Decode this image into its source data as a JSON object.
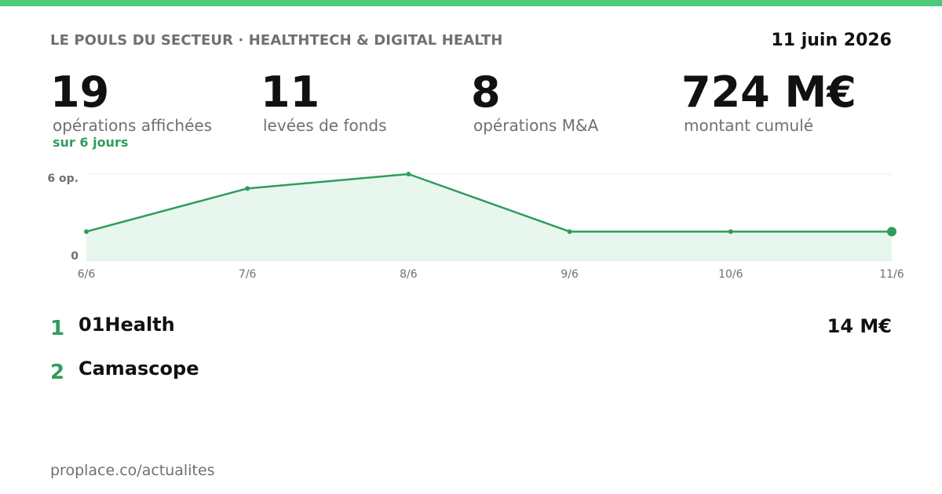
{
  "header": {
    "kicker": "LE POULS DU SECTEUR · HEALTHTECH & DIGITAL HEALTH",
    "date": "11 juin 2026"
  },
  "stats": [
    {
      "value": "19",
      "label": "opérations affichées",
      "sub": "sur 6 jours"
    },
    {
      "value": "11",
      "label": "levées de fonds"
    },
    {
      "value": "8",
      "label": "opérations M&A"
    },
    {
      "value": "724 M€",
      "label": "montant cumulé"
    }
  ],
  "chart_data": {
    "type": "area",
    "categories": [
      "6/6",
      "7/6",
      "8/6",
      "9/6",
      "10/6",
      "11/6"
    ],
    "values": [
      2,
      5,
      6,
      2,
      2,
      2
    ],
    "ylim": [
      0,
      6
    ],
    "y_tick_labels": [
      "0",
      "6 op."
    ],
    "grid": false,
    "colors": {
      "line": "#2e9d5c",
      "fill": "#e8f7ee",
      "axis_text": "#707070"
    }
  },
  "ranking": [
    {
      "rank": "1",
      "name": "01Health",
      "amount": "14 M€"
    },
    {
      "rank": "2",
      "name": "Camascope",
      "amount": ""
    }
  ],
  "footer": {
    "url": "proplace.co/actualites"
  },
  "colors": {
    "accent": "#4cc97a",
    "accent_dark": "#2e9d5c",
    "muted": "#707070"
  }
}
